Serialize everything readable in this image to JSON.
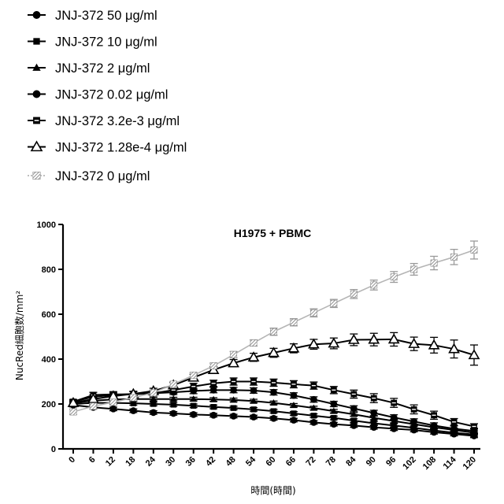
{
  "chart_data": {
    "type": "line",
    "title": "H1975 + PBMC",
    "xlabel": "時間(時間)",
    "ylabel": "NucRed細胞数/mm²",
    "xlim": [
      0,
      120
    ],
    "ylim": [
      0,
      1000
    ],
    "x_ticks": [
      0,
      6,
      12,
      18,
      24,
      30,
      36,
      42,
      48,
      54,
      60,
      66,
      72,
      78,
      84,
      90,
      96,
      102,
      108,
      114,
      120
    ],
    "y_ticks": [
      0,
      200,
      400,
      600,
      800,
      1000
    ],
    "legend_placement": "top-left",
    "x": [
      0,
      6,
      12,
      18,
      24,
      30,
      36,
      42,
      48,
      54,
      60,
      66,
      72,
      78,
      84,
      90,
      96,
      102,
      108,
      114,
      120
    ],
    "series": [
      {
        "name": "JNJ-372 50 μg/ml",
        "marker": "filled-circle",
        "fill": "#000000",
        "values": [
          195,
          185,
          178,
          170,
          162,
          158,
          153,
          150,
          146,
          142,
          136,
          128,
          118,
          110,
          104,
          96,
          90,
          84,
          74,
          66,
          58
        ],
        "errors": [
          8,
          8,
          8,
          8,
          8,
          8,
          8,
          8,
          8,
          8,
          8,
          8,
          8,
          8,
          8,
          8,
          8,
          8,
          8,
          8,
          8
        ]
      },
      {
        "name": "JNJ-372 10 μg/ml",
        "marker": "filled-square",
        "fill": "#000000",
        "values": [
          200,
          205,
          205,
          203,
          200,
          197,
          192,
          187,
          182,
          176,
          168,
          158,
          148,
          138,
          126,
          114,
          104,
          94,
          82,
          72,
          64
        ],
        "errors": [
          8,
          8,
          8,
          8,
          8,
          8,
          8,
          8,
          8,
          8,
          8,
          8,
          8,
          8,
          8,
          8,
          8,
          8,
          8,
          8,
          8
        ]
      },
      {
        "name": "JNJ-372 2 μg/ml",
        "marker": "filled-triangle",
        "fill": "#000000",
        "values": [
          205,
          215,
          220,
          222,
          222,
          222,
          222,
          220,
          218,
          213,
          205,
          194,
          182,
          168,
          154,
          138,
          124,
          110,
          96,
          84,
          72
        ],
        "errors": [
          8,
          8,
          8,
          8,
          8,
          8,
          8,
          8,
          8,
          8,
          8,
          8,
          8,
          8,
          8,
          8,
          8,
          8,
          8,
          8,
          8
        ]
      },
      {
        "name": "JNJ-372 0.02 μg/ml",
        "marker": "filled-circle",
        "fill": "#000000",
        "values": [
          210,
          232,
          240,
          245,
          248,
          252,
          258,
          262,
          262,
          260,
          252,
          238,
          220,
          200,
          180,
          160,
          140,
          122,
          104,
          90,
          80
        ],
        "errors": [
          10,
          10,
          10,
          10,
          10,
          10,
          12,
          12,
          12,
          12,
          12,
          12,
          12,
          12,
          12,
          12,
          12,
          12,
          12,
          12,
          12
        ]
      },
      {
        "name": "JNJ-372 3.2e-3 μg/ml",
        "marker": "open-square-bar",
        "fill": "#000000",
        "values": [
          210,
          240,
          243,
          243,
          248,
          262,
          278,
          292,
          300,
          300,
          295,
          288,
          282,
          262,
          244,
          226,
          205,
          176,
          150,
          120,
          100
        ],
        "errors": [
          10,
          12,
          12,
          12,
          12,
          14,
          14,
          14,
          16,
          16,
          16,
          16,
          16,
          16,
          18,
          20,
          20,
          20,
          18,
          15,
          12
        ]
      },
      {
        "name": "JNJ-372 1.28e-4 μg/ml",
        "marker": "open-triangle",
        "fill": "#ffffff",
        "values": [
          205,
          222,
          235,
          245,
          258,
          284,
          318,
          352,
          382,
          408,
          428,
          448,
          466,
          470,
          486,
          487,
          488,
          468,
          462,
          445,
          418
        ],
        "errors": [
          10,
          10,
          10,
          12,
          12,
          12,
          14,
          14,
          16,
          18,
          20,
          20,
          22,
          24,
          26,
          28,
          30,
          30,
          35,
          40,
          45
        ]
      },
      {
        "name": "JNJ-372 0 μg/ml",
        "marker": "hatched-square",
        "fill": "#b0b0b0",
        "values": [
          165,
          190,
          208,
          228,
          250,
          288,
          328,
          370,
          420,
          472,
          522,
          564,
          606,
          648,
          690,
          730,
          766,
          800,
          828,
          855,
          886
        ],
        "errors": [
          12,
          12,
          12,
          12,
          12,
          12,
          12,
          12,
          14,
          14,
          16,
          16,
          18,
          18,
          20,
          22,
          24,
          26,
          30,
          34,
          40
        ]
      }
    ]
  }
}
